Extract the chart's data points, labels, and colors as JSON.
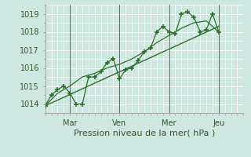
{
  "title": "",
  "xlabel": "Pression niveau de la mer( hPa )",
  "bg_color": "#cde8e0",
  "grid_color": "#b0d8cc",
  "line_color": "#2d6e2d",
  "ylim": [
    1013.5,
    1019.5
  ],
  "xlim": [
    0,
    192
  ],
  "yticks": [
    1014,
    1015,
    1016,
    1017,
    1018,
    1019
  ],
  "xtick_positions": [
    24,
    72,
    120,
    168
  ],
  "xtick_labels": [
    "Mar",
    "Ven",
    "Mer",
    "Jeu"
  ],
  "vlines": [
    24,
    72,
    120,
    168
  ],
  "series1_x": [
    0,
    6,
    12,
    18,
    24,
    30,
    36,
    42,
    48,
    54,
    60,
    66,
    72,
    78,
    84,
    90,
    96,
    102,
    108,
    114,
    120,
    126,
    132,
    138,
    144,
    150,
    156,
    162,
    168
  ],
  "series1_y": [
    1013.9,
    1014.5,
    1014.8,
    1015.0,
    1014.6,
    1014.0,
    1014.0,
    1015.5,
    1015.5,
    1015.8,
    1016.3,
    1016.5,
    1015.4,
    1015.9,
    1016.0,
    1016.4,
    1016.9,
    1017.1,
    1018.0,
    1018.3,
    1018.0,
    1017.9,
    1019.0,
    1019.1,
    1018.8,
    1018.0,
    1018.1,
    1019.0,
    1018.0
  ],
  "series2_x": [
    0,
    12,
    24,
    36,
    48,
    60,
    72,
    84,
    96,
    108,
    120,
    132,
    144,
    156,
    168
  ],
  "series2_y": [
    1013.9,
    1014.6,
    1015.0,
    1015.5,
    1015.7,
    1016.0,
    1016.2,
    1016.5,
    1016.9,
    1017.4,
    1017.8,
    1018.2,
    1018.5,
    1018.6,
    1018.0
  ],
  "trend_x": [
    0,
    168
  ],
  "trend_y": [
    1013.9,
    1018.3
  ]
}
